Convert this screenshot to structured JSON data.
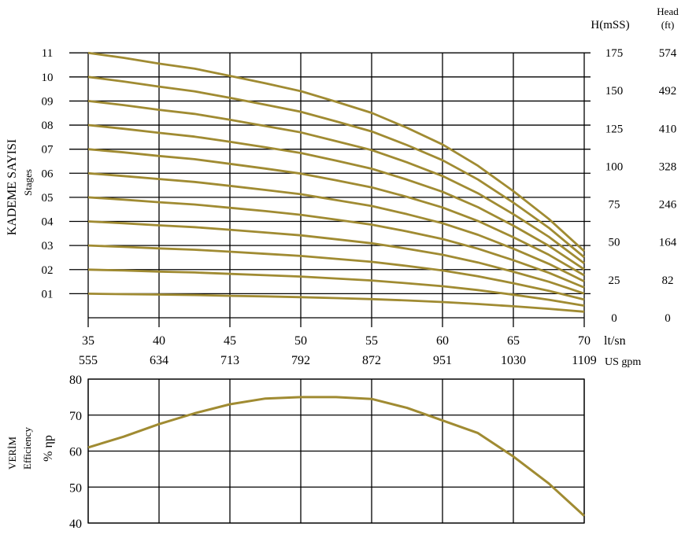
{
  "chart_data": [
    {
      "type": "line",
      "ylabel": "KADEME SAYISI",
      "ylabel_sub": "Stages",
      "right_label_head_m": "H(mSS)",
      "right_label_head_ft": "Head",
      "right_label_head_ft_unit": "(ft)",
      "x_unit_primary": "lt/sn",
      "x_unit_secondary": "US gpm",
      "x_ticks_primary": [
        "35",
        "40",
        "45",
        "50",
        "55",
        "60",
        "65",
        "70"
      ],
      "x_ticks_secondary": [
        "555",
        "634",
        "713",
        "792",
        "872",
        "951",
        "1030",
        "1109"
      ],
      "stage_labels": [
        "01",
        "02",
        "03",
        "04",
        "05",
        "06",
        "07",
        "08",
        "09",
        "10",
        "11"
      ],
      "head_m_ticks": [
        "0",
        "25",
        "50",
        "75",
        "100",
        "125",
        "150",
        "175"
      ],
      "head_ft_ticks": [
        "0",
        "82",
        "164",
        "246",
        "328",
        "410",
        "492",
        "574"
      ],
      "xlim": [
        35,
        70
      ],
      "ylim": [
        0,
        175
      ],
      "grid": true,
      "color": "#a08b32",
      "x": [
        35,
        37.5,
        40,
        42.5,
        45,
        47.5,
        50,
        52.5,
        55,
        57.5,
        60,
        62.5,
        65,
        67.5,
        70
      ],
      "series": [
        {
          "values": [
            15.9,
            15.6,
            15.3,
            15.0,
            14.5,
            14.1,
            13.6,
            13.0,
            12.3,
            11.4,
            10.4,
            9.1,
            7.6,
            5.9,
            4.0
          ]
        },
        {
          "values": [
            31.8,
            31.2,
            30.5,
            29.9,
            29.0,
            28.1,
            27.2,
            25.9,
            24.6,
            22.8,
            20.8,
            18.3,
            15.2,
            11.9,
            8.0
          ]
        },
        {
          "values": [
            47.7,
            46.8,
            45.8,
            44.9,
            43.6,
            42.2,
            40.8,
            38.9,
            36.9,
            34.2,
            31.2,
            27.4,
            22.8,
            17.8,
            12.0
          ]
        },
        {
          "values": [
            63.6,
            62.4,
            61.0,
            59.8,
            58.1,
            56.3,
            54.4,
            51.8,
            49.2,
            45.6,
            41.6,
            36.5,
            30.4,
            23.8,
            16.0
          ]
        },
        {
          "values": [
            79.5,
            78.0,
            76.3,
            74.8,
            72.6,
            70.4,
            68.0,
            64.8,
            61.5,
            57.0,
            52.0,
            45.6,
            38.0,
            29.7,
            20.0
          ]
        },
        {
          "values": [
            95.4,
            93.6,
            91.6,
            89.7,
            87.1,
            84.4,
            81.6,
            77.7,
            73.8,
            68.4,
            62.4,
            54.8,
            45.6,
            35.6,
            24.0
          ]
        },
        {
          "values": [
            111.3,
            109.2,
            106.8,
            104.7,
            101.6,
            98.5,
            95.2,
            90.7,
            86.1,
            79.8,
            72.8,
            63.9,
            53.2,
            41.6,
            28.0
          ]
        },
        {
          "values": [
            127.2,
            124.8,
            122.1,
            119.6,
            116.2,
            112.6,
            108.8,
            103.7,
            98.4,
            91.2,
            83.2,
            73.0,
            60.8,
            47.5,
            32.0
          ]
        },
        {
          "values": [
            143.1,
            140.4,
            137.3,
            134.6,
            130.7,
            126.6,
            122.4,
            116.6,
            110.7,
            102.6,
            93.6,
            82.2,
            68.4,
            53.5,
            36.0
          ]
        },
        {
          "values": [
            159.0,
            156.0,
            152.6,
            149.5,
            145.2,
            140.7,
            136.0,
            129.6,
            123.0,
            114.0,
            104.0,
            91.3,
            76.0,
            59.4,
            40.0
          ]
        },
        {
          "values": [
            174.9,
            171.6,
            167.8,
            164.5,
            159.7,
            154.8,
            149.6,
            142.6,
            135.3,
            125.4,
            114.4,
            100.4,
            83.6,
            65.3,
            44.0
          ]
        }
      ]
    },
    {
      "type": "line",
      "ylabel": "VERİM",
      "ylabel_sub": "Efficiency",
      "ylabel_unit": "% ηp",
      "y_ticks": [
        "40",
        "50",
        "60",
        "70",
        "80"
      ],
      "xlim": [
        35,
        70
      ],
      "ylim": [
        40,
        80
      ],
      "grid": true,
      "color": "#a08b32",
      "x": [
        35,
        37.5,
        40,
        42.5,
        45,
        47.5,
        50,
        52.5,
        55,
        57.5,
        60,
        62.5,
        65,
        67.5,
        70
      ],
      "values": [
        61.0,
        64.0,
        67.5,
        70.5,
        73.0,
        74.6,
        75.0,
        75.0,
        74.5,
        72.0,
        68.5,
        65.0,
        58.5,
        51.0,
        42.0
      ]
    }
  ]
}
